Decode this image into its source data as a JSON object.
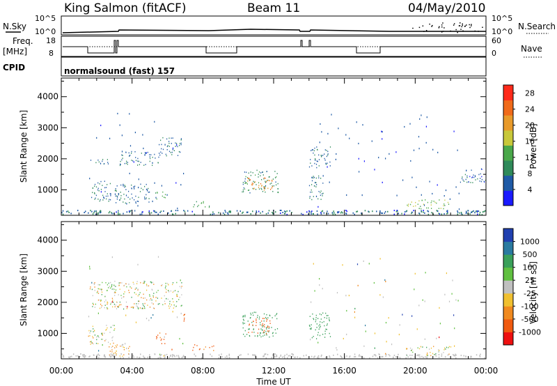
{
  "header": {
    "station": "King Salmon (fitACF)",
    "beam": "Beam 11",
    "date": "04/May/2010"
  },
  "strips": {
    "nsky_label": "N.Sky",
    "nsky_ticks": [
      "10^5",
      "10^0"
    ],
    "nsearch_label": "N.Search",
    "nsearch_ticks": [
      "10^5",
      "10^0"
    ],
    "freq_label": "Freq.",
    "freq_unit": "[MHz]",
    "freq_ticks": [
      "18",
      "8"
    ],
    "nave_label": "Nave",
    "nave_ticks": [
      "60",
      "0"
    ],
    "cpid_label": "CPID",
    "cpid_text": "normalsound (fast) 157"
  },
  "chart_data": [
    {
      "type": "heatmap",
      "panel": "power",
      "ylabel": "Slant Range [km]",
      "xlabel": "",
      "x_ticks": [
        "00:00",
        "04:00",
        "08:00",
        "12:00",
        "16:00",
        "20:00",
        "00:00"
      ],
      "xlim_hours": [
        0,
        24
      ],
      "ylim": [
        180,
        4600
      ],
      "y_ticks": [
        1000,
        2000,
        3000,
        4000
      ],
      "colorbar": {
        "label": "Power [dB]",
        "ticks": [
          4,
          8,
          12,
          16,
          20,
          24,
          28
        ],
        "range": [
          0,
          30
        ],
        "colors": [
          "#1a1aff",
          "#1f5aa6",
          "#2f8a5a",
          "#4aa84a",
          "#c8c83a",
          "#e89a2a",
          "#f06a1a",
          "#ff2a1a"
        ]
      },
      "regions": [
        {
          "x": [
            1.5,
            6.9
          ],
          "y": [
            200,
            3500
          ],
          "level": 5,
          "note": "scatter"
        },
        {
          "x": [
            1.6,
            2.7
          ],
          "y": [
            1850,
            2050
          ],
          "level": 7
        },
        {
          "x": [
            3.2,
            5.5
          ],
          "y": [
            1800,
            2250
          ],
          "level": 7
        },
        {
          "x": [
            5.5,
            6.8
          ],
          "y": [
            2100,
            2700
          ],
          "level": 7
        },
        {
          "x": [
            1.5,
            2.8
          ],
          "y": [
            650,
            1300
          ],
          "level": 7
        },
        {
          "x": [
            3.0,
            5.0
          ],
          "y": [
            550,
            1200
          ],
          "level": 7
        },
        {
          "x": [
            5.3,
            5.9
          ],
          "y": [
            650,
            950
          ],
          "level": 13
        },
        {
          "x": [
            7.4,
            8.6
          ],
          "y": [
            450,
            650
          ],
          "level": 12
        },
        {
          "x": [
            10.2,
            12.3
          ],
          "y": [
            900,
            1650
          ],
          "level": 9
        },
        {
          "x": [
            10.5,
            12.0
          ],
          "y": [
            1000,
            1400
          ],
          "level": 23
        },
        {
          "x": [
            14.0,
            22.5
          ],
          "y": [
            300,
            3500
          ],
          "level": 5,
          "note": "scatter"
        },
        {
          "x": [
            14.0,
            15.2
          ],
          "y": [
            1700,
            2400
          ],
          "level": 7
        },
        {
          "x": [
            14.0,
            14.8
          ],
          "y": [
            700,
            1500
          ],
          "level": 8
        },
        {
          "x": [
            19.5,
            22.0
          ],
          "y": [
            400,
            700
          ],
          "level": 14
        },
        {
          "x": [
            22.5,
            24.0
          ],
          "y": [
            1200,
            1700
          ],
          "level": 6
        }
      ]
    },
    {
      "type": "heatmap",
      "panel": "velocity",
      "ylabel": "Slant Range [km]",
      "xlabel": "Time UT",
      "x_ticks": [
        "00:00",
        "04:00",
        "08:00",
        "12:00",
        "16:00",
        "20:00",
        "00:00"
      ],
      "xlim_hours": [
        0,
        24
      ],
      "ylim": [
        180,
        4600
      ],
      "y_ticks": [
        1000,
        2000,
        3000,
        4000
      ],
      "colorbar": {
        "label": "Velocity [m s^-1]",
        "ticks": [
          1000,
          500,
          100,
          25,
          -25,
          -100,
          -500,
          -1000
        ],
        "colors": [
          "#2040b0",
          "#2a7aa0",
          "#3aa05a",
          "#60c040",
          "#c0c0c0",
          "#f0c030",
          "#f08a20",
          "#f05a10",
          "#ee1010"
        ]
      },
      "regions": [
        {
          "x": [
            1.5,
            6.9
          ],
          "y": [
            200,
            3500
          ],
          "level": 0,
          "note": "scatter"
        },
        {
          "x": [
            1.6,
            6.8
          ],
          "y": [
            1800,
            2700
          ],
          "level": 0
        },
        {
          "x": [
            1.5,
            3.0
          ],
          "y": [
            650,
            1300
          ],
          "level": 0
        },
        {
          "x": [
            2.5,
            4.0
          ],
          "y": [
            250,
            650
          ],
          "level": -80
        },
        {
          "x": [
            5.3,
            5.9
          ],
          "y": [
            650,
            1050
          ],
          "level": -350
        },
        {
          "x": [
            6.9,
            7.1
          ],
          "y": [
            1300,
            1700
          ],
          "level": -350
        },
        {
          "x": [
            7.4,
            8.6
          ],
          "y": [
            450,
            650
          ],
          "level": -350
        },
        {
          "x": [
            10.2,
            12.3
          ],
          "y": [
            900,
            1700
          ],
          "level": 200
        },
        {
          "x": [
            10.5,
            11.8
          ],
          "y": [
            1000,
            1500
          ],
          "level": -400
        },
        {
          "x": [
            14.0,
            15.2
          ],
          "y": [
            800,
            1700
          ],
          "level": 200
        },
        {
          "x": [
            14.0,
            22.5
          ],
          "y": [
            300,
            3500
          ],
          "level": 0,
          "note": "scatter"
        },
        {
          "x": [
            19.5,
            22.0
          ],
          "y": [
            300,
            600
          ],
          "level": 0
        }
      ]
    }
  ],
  "colors": {
    "frame": "#000000",
    "background": "#ffffff"
  }
}
